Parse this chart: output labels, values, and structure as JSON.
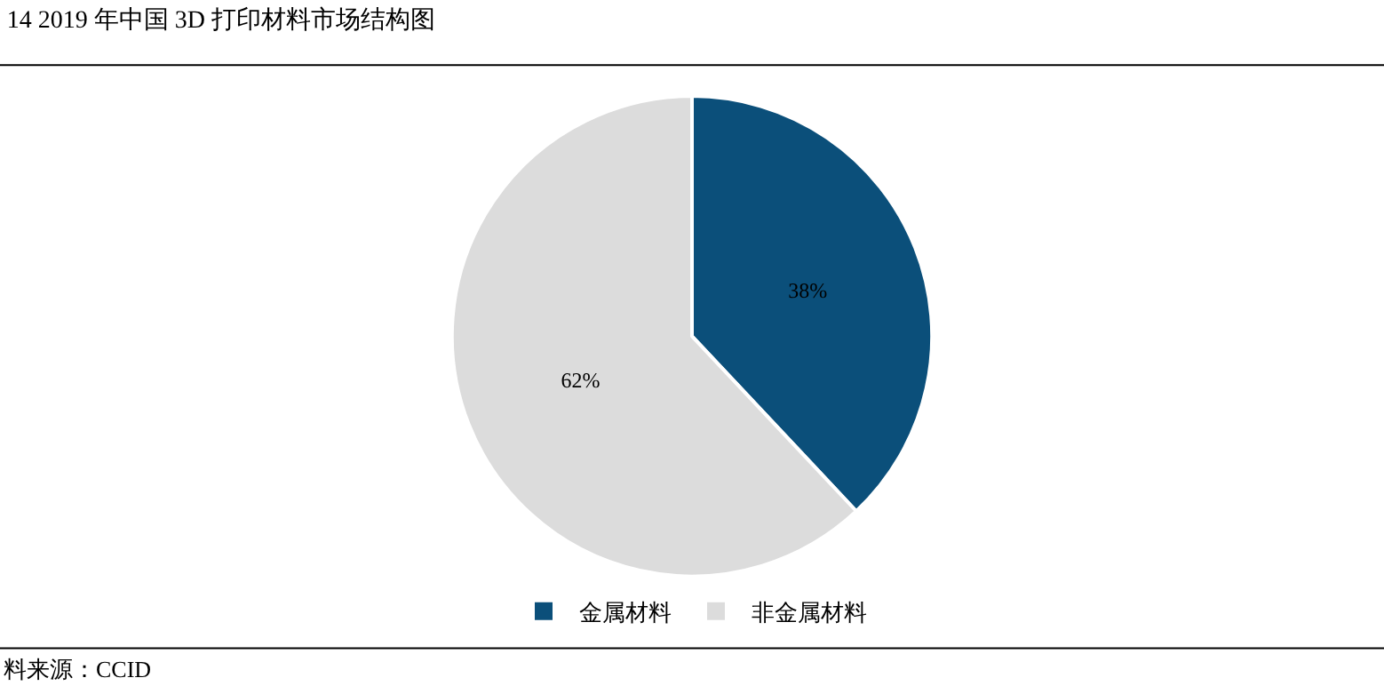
{
  "chart_data": {
    "type": "pie",
    "title": "14 2019 年中国 3D 打印材料市场结构图",
    "categories": [
      "金属材料",
      "非金属材料"
    ],
    "values": [
      38,
      62
    ],
    "value_labels": [
      "38%",
      "62%"
    ],
    "colors": [
      "#0b4f7a",
      "#dcdcdc"
    ],
    "legend": "bottom",
    "annotations": [
      "料来源：CCID"
    ]
  }
}
